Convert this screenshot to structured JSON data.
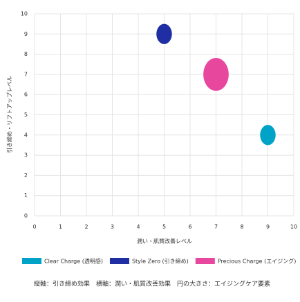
{
  "chart_data": {
    "type": "scatter",
    "x_label": "潤い・肌質改善レベル",
    "y_label": "引き締め・リフトアップレベル",
    "xlim": [
      0,
      10
    ],
    "ylim": [
      0,
      10
    ],
    "xticks": [
      0,
      1,
      2,
      3,
      4,
      5,
      6,
      7,
      8,
      9,
      10
    ],
    "yticks": [
      0,
      1,
      2,
      3,
      4,
      5,
      6,
      7,
      8,
      9,
      10
    ],
    "grid": true,
    "series": [
      {
        "name": "Clear Charge (透明感)",
        "color": "#00a3c8",
        "x": [
          9
        ],
        "values": [
          4
        ],
        "sizes": [
          3
        ]
      },
      {
        "name": "Style Zero (引き締め)",
        "color": "#1f2fa3",
        "x": [
          5
        ],
        "values": [
          9
        ],
        "sizes": [
          3
        ]
      },
      {
        "name": "Precious Charge (エイジング)",
        "color": "#e8479e",
        "x": [
          7
        ],
        "values": [
          7
        ],
        "sizes": [
          8
        ]
      }
    ],
    "note": "縦軸：引き締め効果　横軸：潤い・肌質改善効果　円の大きさ：エイジングケア要素"
  }
}
